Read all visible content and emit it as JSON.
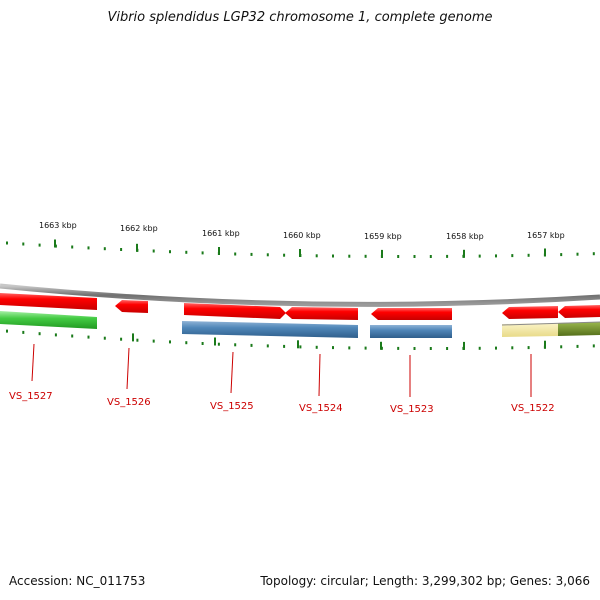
{
  "title": "Vibrio splendidus LGP32 chromosome 1, complete genome",
  "footer": {
    "accession": "Accession: NC_011753",
    "summary": "Topology: circular; Length: 3,299,302 bp; Genes: 3,066"
  },
  "colors": {
    "backbone": "#777777",
    "tick": "#1a7a1a",
    "gene_red": "#ff0000",
    "gene_blue": "#4f86b8",
    "gene_green": "#44cc44",
    "gene_yellow": "#efe39a",
    "gene_olive": "#6b8e23",
    "label_red": "#cc0000"
  },
  "scale": {
    "labels": [
      "1663 kbp",
      "1662 kbp",
      "1661 kbp",
      "1660 kbp",
      "1659 kbp",
      "1658 kbp",
      "1657 kbp"
    ]
  },
  "genes": [
    {
      "label": "VS_1527",
      "strand": "forward"
    },
    {
      "label": "VS_1526",
      "strand": "reverse"
    },
    {
      "label": "VS_1525",
      "strand": "forward"
    },
    {
      "label": "VS_1524",
      "strand": "reverse"
    },
    {
      "label": "VS_1523",
      "strand": "reverse"
    },
    {
      "label": "VS_1522",
      "strand": "reverse"
    }
  ]
}
